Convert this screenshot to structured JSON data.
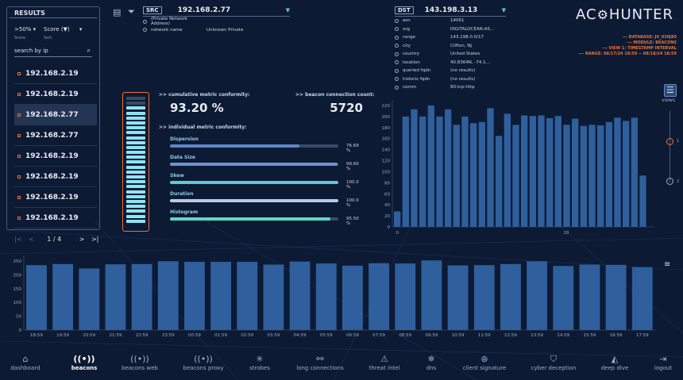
{
  "results": {
    "title": "RESULTS",
    "filter_value": ">50%",
    "filter_caption": "Score",
    "sort_value": "Score (▼)",
    "sort_caption": "Sort",
    "search_placeholder": "search by ip",
    "items": [
      "192.168.2.19",
      "192.168.2.19",
      "192.168.2.77",
      "192.168.2.77",
      "192.168.2.19",
      "192.168.2.19",
      "192.168.2.19",
      "192.168.2.19"
    ],
    "selected_index": 2,
    "pager": {
      "text": "1 / 4",
      "first": "|<",
      "prev": "<",
      "next": ">",
      "last": ">|"
    }
  },
  "src": {
    "label": "SRC",
    "ip": "192.168.2.77",
    "rows": [
      {
        "k": "(Private Network Address)",
        "v": ""
      },
      {
        "k": "network name",
        "v": "Unknown Private"
      }
    ]
  },
  "dst": {
    "label": "DST",
    "ip": "143.198.3.13",
    "rows": [
      {
        "k": "asn",
        "v": "14061"
      },
      {
        "k": "org",
        "v": "DIGITALOCEAN-AS..."
      },
      {
        "k": "range",
        "v": "143.198.0.0/17"
      },
      {
        "k": "city",
        "v": "Clifton, NJ"
      },
      {
        "k": "country",
        "v": "United States"
      },
      {
        "k": "location",
        "v": "40.8364N, -74.1..."
      },
      {
        "k": "queried fqdn",
        "v": "(no results)"
      },
      {
        "k": "historic fqdn",
        "v": "(no results)"
      },
      {
        "k": "comm",
        "v": "80:tcp:http"
      }
    ]
  },
  "logo": {
    "left": "AC",
    "right": "HUNTER"
  },
  "meta": [
    "--- DATABASE: JV_030J89",
    "--- MODULE: BEACONS",
    "--- VIEW 1: TIMESTAMP INTERVAL",
    "--- RANGE: 08/17/24 18:59 -- 08/18/24 18:59"
  ],
  "metrics": {
    "cumulative_label": ">> cumulative metric conformity:",
    "cumulative_value": "93.20 %",
    "count_label": ">> beacon connection count:",
    "count_value": "5720",
    "individual_label": ">> individual metric conformity:",
    "gauge_fraction": 0.932,
    "bars": [
      {
        "name": "Dispersion",
        "value": "76.69 %",
        "fraction": 0.7669,
        "color": "#5f86c8"
      },
      {
        "name": "Data Size",
        "value": "99.60 %",
        "fraction": 0.996,
        "color": "#6f93d0"
      },
      {
        "name": "Skew",
        "value": "100.0 %",
        "fraction": 1.0,
        "color": "#5ec8d8"
      },
      {
        "name": "Duration",
        "value": "100.0 %",
        "fraction": 1.0,
        "color": "#b8c8e8"
      },
      {
        "name": "Histogram",
        "value": "95.50 %",
        "fraction": 0.955,
        "color": "#5ed8c8"
      }
    ]
  },
  "views": {
    "label": "views",
    "slider_top": "1",
    "slider_bottom": "2"
  },
  "chart_data": [
    {
      "type": "bar",
      "name": "hourly-histogram",
      "y_ticks": [
        0,
        20,
        40,
        60,
        80,
        100,
        120,
        140,
        160,
        180,
        200,
        220
      ],
      "ylim": [
        0,
        230
      ],
      "x_tick_labels": [
        "0",
        "19"
      ],
      "values": [
        28,
        200,
        213,
        200,
        220,
        200,
        213,
        185,
        200,
        188,
        190,
        215,
        165,
        205,
        185,
        202,
        201,
        202,
        197,
        201,
        185,
        196,
        183,
        185,
        184,
        190,
        198,
        192,
        198,
        93
      ],
      "color": "#2f5f9c"
    },
    {
      "type": "bar",
      "name": "timeline",
      "y_ticks": [
        0,
        50,
        100,
        150,
        200,
        250
      ],
      "ylim": [
        0,
        270
      ],
      "categories": [
        "18:59",
        "19:59",
        "20:59",
        "21:59",
        "22:59",
        "23:59",
        "00:59",
        "01:59",
        "02:59",
        "03:59",
        "04:59",
        "05:59",
        "06:59",
        "07:59",
        "08:59",
        "09:59",
        "10:59",
        "11:59",
        "12:59",
        "13:59",
        "14:59",
        "15:59",
        "16:59",
        "17:59"
      ],
      "values": [
        235,
        239,
        223,
        238,
        239,
        249,
        247,
        247,
        247,
        237,
        248,
        241,
        233,
        242,
        241,
        252,
        234,
        235,
        239,
        249,
        232,
        237,
        236,
        228
      ],
      "color": "#2f5f9c"
    }
  ],
  "nav": [
    {
      "label": "dashboard",
      "icon": "⌂",
      "name": "home-icon"
    },
    {
      "label": "beacons",
      "icon": "((•))",
      "name": "beacon-icon",
      "active": true
    },
    {
      "label": "beacons web",
      "icon": "((•))",
      "name": "beacon-web-icon"
    },
    {
      "label": "beacons proxy",
      "icon": "((•))",
      "name": "beacon-proxy-icon"
    },
    {
      "label": "strobes",
      "icon": "✳",
      "name": "strobe-icon"
    },
    {
      "label": "long connections",
      "icon": "⚯",
      "name": "long-connections-icon"
    },
    {
      "label": "threat intel",
      "icon": "⚠",
      "name": "threat-intel-icon"
    },
    {
      "label": "dns",
      "icon": "✵",
      "name": "dns-icon"
    },
    {
      "label": "client signature",
      "icon": "⊛",
      "name": "fingerprint-icon"
    },
    {
      "label": "cyber deception",
      "icon": "⛉",
      "name": "shield-icon"
    },
    {
      "label": "deep dive",
      "icon": "◭",
      "name": "deep-dive-icon"
    },
    {
      "label": "logout",
      "icon": "⇥",
      "name": "logout-icon"
    }
  ]
}
